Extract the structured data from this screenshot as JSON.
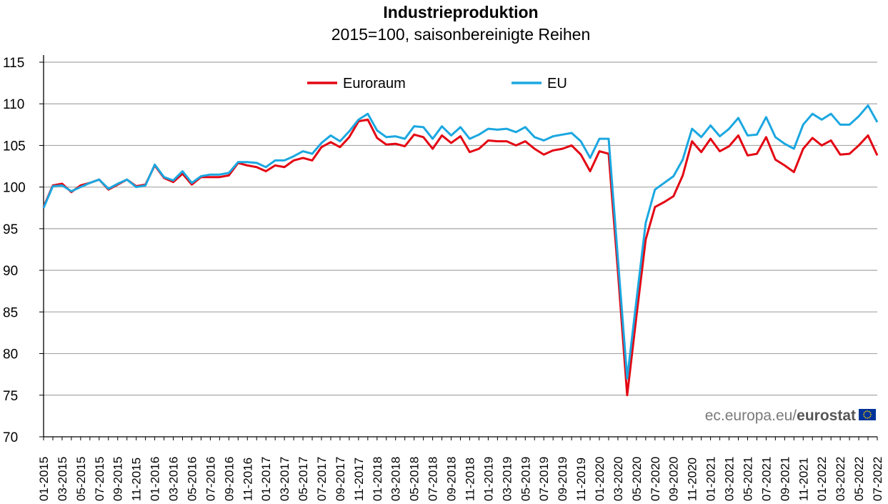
{
  "title": "Industrieproduktion",
  "subtitle": "2015=100, saisonbereinigte Reihen",
  "credit": {
    "prefix": "ec.europa.eu/",
    "brand": "eurostat",
    "flag_color": "#003399",
    "star_color": "#ffcc00"
  },
  "chart_data": {
    "type": "line",
    "title": "Industrieproduktion",
    "subtitle": "2015=100, saisonbereinigte Reihen",
    "xlabel": "",
    "ylabel": "",
    "ylim": [
      70,
      115
    ],
    "yticks": [
      70,
      75,
      80,
      85,
      90,
      95,
      100,
      105,
      110,
      115
    ],
    "grid": true,
    "legend_position": "top-center",
    "x_tick_labels": [
      "01-2015",
      "03-2015",
      "05-2015",
      "07-2015",
      "09-2015",
      "11-2015",
      "01-2016",
      "03-2016",
      "05-2016",
      "07-2016",
      "09-2016",
      "11-2016",
      "01-2017",
      "03-2017",
      "05-2017",
      "07-2017",
      "09-2017",
      "11-2017",
      "01-2018",
      "03-2018",
      "05-2018",
      "07-2018",
      "09-2018",
      "11-2018",
      "01-2019",
      "03-2019",
      "05-2019",
      "07-2019",
      "09-2019",
      "11-2019",
      "01-2020",
      "03-2020",
      "05-2020",
      "07-2020",
      "09-2020",
      "11-2020",
      "01-2021",
      "03-2021",
      "05-2021",
      "07-2021",
      "09-2021",
      "11-2021",
      "01-2022",
      "03-2022",
      "05-2022",
      "07-2022"
    ],
    "series": [
      {
        "name": "Euroraum",
        "color": "#e30613",
        "values": [
          97.6,
          100.2,
          100.4,
          99.4,
          100.2,
          100.5,
          100.9,
          99.7,
          100.3,
          100.9,
          100.1,
          100.3,
          102.6,
          101.1,
          100.6,
          101.6,
          100.3,
          101.2,
          101.2,
          101.2,
          101.4,
          102.9,
          102.6,
          102.4,
          101.9,
          102.6,
          102.4,
          103.2,
          103.5,
          103.2,
          104.8,
          105.4,
          104.8,
          106.0,
          107.9,
          108.1,
          105.9,
          105.1,
          105.2,
          104.9,
          106.3,
          106.0,
          104.6,
          106.2,
          105.3,
          106.1,
          104.2,
          104.6,
          105.6,
          105.5,
          105.5,
          105.0,
          105.5,
          104.6,
          103.9,
          104.4,
          104.6,
          105.0,
          103.9,
          101.9,
          104.3,
          104.0,
          89.9,
          75.0,
          84.5,
          93.7,
          97.6,
          98.2,
          98.9,
          101.4,
          105.5,
          104.2,
          105.8,
          104.3,
          104.9,
          106.2,
          103.8,
          104.0,
          106.0,
          103.3,
          102.6,
          101.8,
          104.6,
          105.9,
          105.0,
          105.6,
          103.9,
          104.0,
          105.0,
          106.2,
          103.8
        ]
      },
      {
        "name": "EU",
        "color": "#1ba7e0",
        "values": [
          97.5,
          100.1,
          100.2,
          99.5,
          100.0,
          100.5,
          100.9,
          99.8,
          100.4,
          100.9,
          100.0,
          100.2,
          102.7,
          101.2,
          100.8,
          101.9,
          100.5,
          101.3,
          101.5,
          101.5,
          101.7,
          103.0,
          103.0,
          102.9,
          102.4,
          103.2,
          103.2,
          103.7,
          104.3,
          104.0,
          105.3,
          106.2,
          105.5,
          106.7,
          108.1,
          108.8,
          106.8,
          106.0,
          106.1,
          105.8,
          107.3,
          107.2,
          105.8,
          107.3,
          106.2,
          107.2,
          105.8,
          106.3,
          107.0,
          106.9,
          107.0,
          106.6,
          107.2,
          106.0,
          105.6,
          106.1,
          106.3,
          106.5,
          105.5,
          103.5,
          105.8,
          105.8,
          91.4,
          77.0,
          86.4,
          95.7,
          99.7,
          100.5,
          101.3,
          103.3,
          107.0,
          106.0,
          107.4,
          106.1,
          107.0,
          108.3,
          106.2,
          106.3,
          108.4,
          106.0,
          105.2,
          104.6,
          107.5,
          108.8,
          108.1,
          108.8,
          107.5,
          107.5,
          108.5,
          109.8,
          107.8
        ]
      }
    ]
  }
}
